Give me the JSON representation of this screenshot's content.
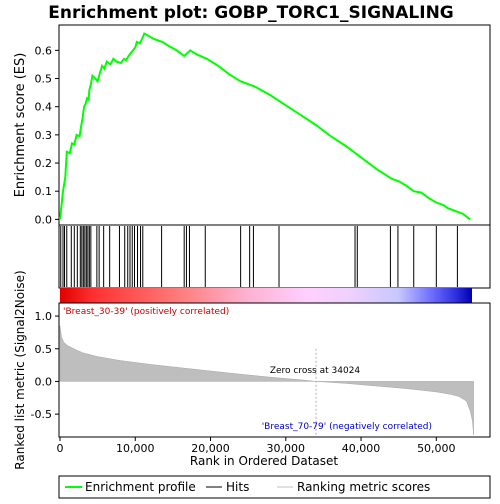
{
  "chart_data": {
    "type": "line",
    "title": "Enrichment plot: GOBP_TORC1_SIGNALING",
    "es_panel": {
      "ylabel": "Enrichment score (ES)",
      "ylim": [
        -0.02,
        0.69
      ],
      "yticks": [
        0.0,
        0.1,
        0.2,
        0.3,
        0.4,
        0.5,
        0.6
      ],
      "ytick_labels": [
        "0.0",
        "0.1",
        "0.2",
        "0.3",
        "0.4",
        "0.5",
        "0.6"
      ],
      "points": [
        [
          0,
          0.0
        ],
        [
          200,
          0.05
        ],
        [
          400,
          0.1
        ],
        [
          700,
          0.15
        ],
        [
          900,
          0.24
        ],
        [
          1300,
          0.235
        ],
        [
          1600,
          0.27
        ],
        [
          1900,
          0.265
        ],
        [
          2200,
          0.3
        ],
        [
          2600,
          0.295
        ],
        [
          2800,
          0.33
        ],
        [
          3000,
          0.36
        ],
        [
          3100,
          0.38
        ],
        [
          3200,
          0.4
        ],
        [
          3400,
          0.41
        ],
        [
          3600,
          0.43
        ],
        [
          3800,
          0.425
        ],
        [
          3900,
          0.46
        ],
        [
          4100,
          0.48
        ],
        [
          4300,
          0.51
        ],
        [
          4700,
          0.5
        ],
        [
          5000,
          0.49
        ],
        [
          5300,
          0.52
        ],
        [
          5600,
          0.545
        ],
        [
          5900,
          0.535
        ],
        [
          6200,
          0.56
        ],
        [
          6700,
          0.55
        ],
        [
          7100,
          0.57
        ],
        [
          7500,
          0.56
        ],
        [
          8100,
          0.555
        ],
        [
          8500,
          0.57
        ],
        [
          8800,
          0.565
        ],
        [
          9100,
          0.58
        ],
        [
          9400,
          0.59
        ],
        [
          9700,
          0.6
        ],
        [
          10000,
          0.61
        ],
        [
          10200,
          0.63
        ],
        [
          10600,
          0.625
        ],
        [
          10900,
          0.64
        ],
        [
          11200,
          0.66
        ],
        [
          12500,
          0.64
        ],
        [
          13600,
          0.63
        ],
        [
          14500,
          0.615
        ],
        [
          15500,
          0.6
        ],
        [
          16500,
          0.58
        ],
        [
          17300,
          0.6
        ],
        [
          18200,
          0.585
        ],
        [
          19500,
          0.57
        ],
        [
          21000,
          0.545
        ],
        [
          22500,
          0.515
        ],
        [
          24000,
          0.49
        ],
        [
          26000,
          0.47
        ],
        [
          28000,
          0.44
        ],
        [
          30000,
          0.405
        ],
        [
          32000,
          0.37
        ],
        [
          34000,
          0.335
        ],
        [
          36000,
          0.295
        ],
        [
          38000,
          0.26
        ],
        [
          40000,
          0.22
        ],
        [
          42000,
          0.18
        ],
        [
          44000,
          0.145
        ],
        [
          45000,
          0.135
        ],
        [
          46000,
          0.12
        ],
        [
          47000,
          0.1
        ],
        [
          48000,
          0.095
        ],
        [
          49000,
          0.075
        ],
        [
          50000,
          0.06
        ],
        [
          51000,
          0.05
        ],
        [
          51500,
          0.04
        ],
        [
          52500,
          0.03
        ],
        [
          53500,
          0.02
        ],
        [
          54500,
          0.0
        ]
      ]
    },
    "hits": [
      100,
      400,
      600,
      900,
      1500,
      1900,
      2300,
      2700,
      2900,
      3100,
      3300,
      3500,
      3700,
      3900,
      4100,
      4900,
      5200,
      5800,
      6600,
      7900,
      8600,
      9000,
      9300,
      9600,
      9900,
      10300,
      10700,
      11000,
      13500,
      16500,
      16800,
      17200,
      19300,
      24000,
      25200,
      25700,
      29100,
      39200,
      39500,
      43900,
      44900,
      47000,
      50000,
      52800
    ],
    "ranking_panel": {
      "ylabel": "Ranked list metric (Signal2Noise)",
      "ylim": [
        -0.85,
        1.2
      ],
      "yticks": [
        -0.5,
        0.0,
        0.5,
        1.0
      ],
      "ytick_labels": [
        "-0.5",
        "0.0",
        "0.5",
        "1.0"
      ],
      "xlabel": "Rank in Ordered Dataset",
      "xlim": [
        0,
        57000
      ],
      "xticks": [
        0,
        10000,
        20000,
        30000,
        40000,
        50000
      ],
      "xtick_labels": [
        "0",
        "10,000",
        "20,000",
        "30,000",
        "40,000",
        "50,000"
      ],
      "zero_cross": 34024,
      "zero_cross_label": "Zero cross at 34024",
      "positive_label": "'Breast_30-39' (positively correlated)",
      "negative_label": "'Breast_70-79' (negatively correlated)",
      "metric_curve": [
        [
          0,
          0.85
        ],
        [
          200,
          0.68
        ],
        [
          500,
          0.6
        ],
        [
          1000,
          0.55
        ],
        [
          2000,
          0.49
        ],
        [
          3000,
          0.44
        ],
        [
          5000,
          0.38
        ],
        [
          8000,
          0.32
        ],
        [
          12000,
          0.26
        ],
        [
          16000,
          0.21
        ],
        [
          20000,
          0.16
        ],
        [
          24000,
          0.11
        ],
        [
          28000,
          0.065
        ],
        [
          32000,
          0.025
        ],
        [
          34024,
          0.0
        ],
        [
          38000,
          -0.03
        ],
        [
          42000,
          -0.07
        ],
        [
          46000,
          -0.11
        ],
        [
          50000,
          -0.16
        ],
        [
          52000,
          -0.2
        ],
        [
          53000,
          -0.23
        ],
        [
          54000,
          -0.3
        ],
        [
          54500,
          -0.45
        ],
        [
          54800,
          -0.6
        ],
        [
          54950,
          -0.82
        ]
      ]
    },
    "legend": {
      "placement": "bottom",
      "entries": [
        {
          "label": "Enrichment profile",
          "color": "#00ff00"
        },
        {
          "label": "Hits",
          "color": "#000000"
        },
        {
          "label": "Ranking metric scores",
          "color": "#c0c0c0"
        }
      ]
    },
    "colors": {
      "es_line": "#00ff00",
      "positive_text": "#cc0000",
      "negative_text": "#0000cc",
      "metric_fill": "#bebebe"
    }
  }
}
